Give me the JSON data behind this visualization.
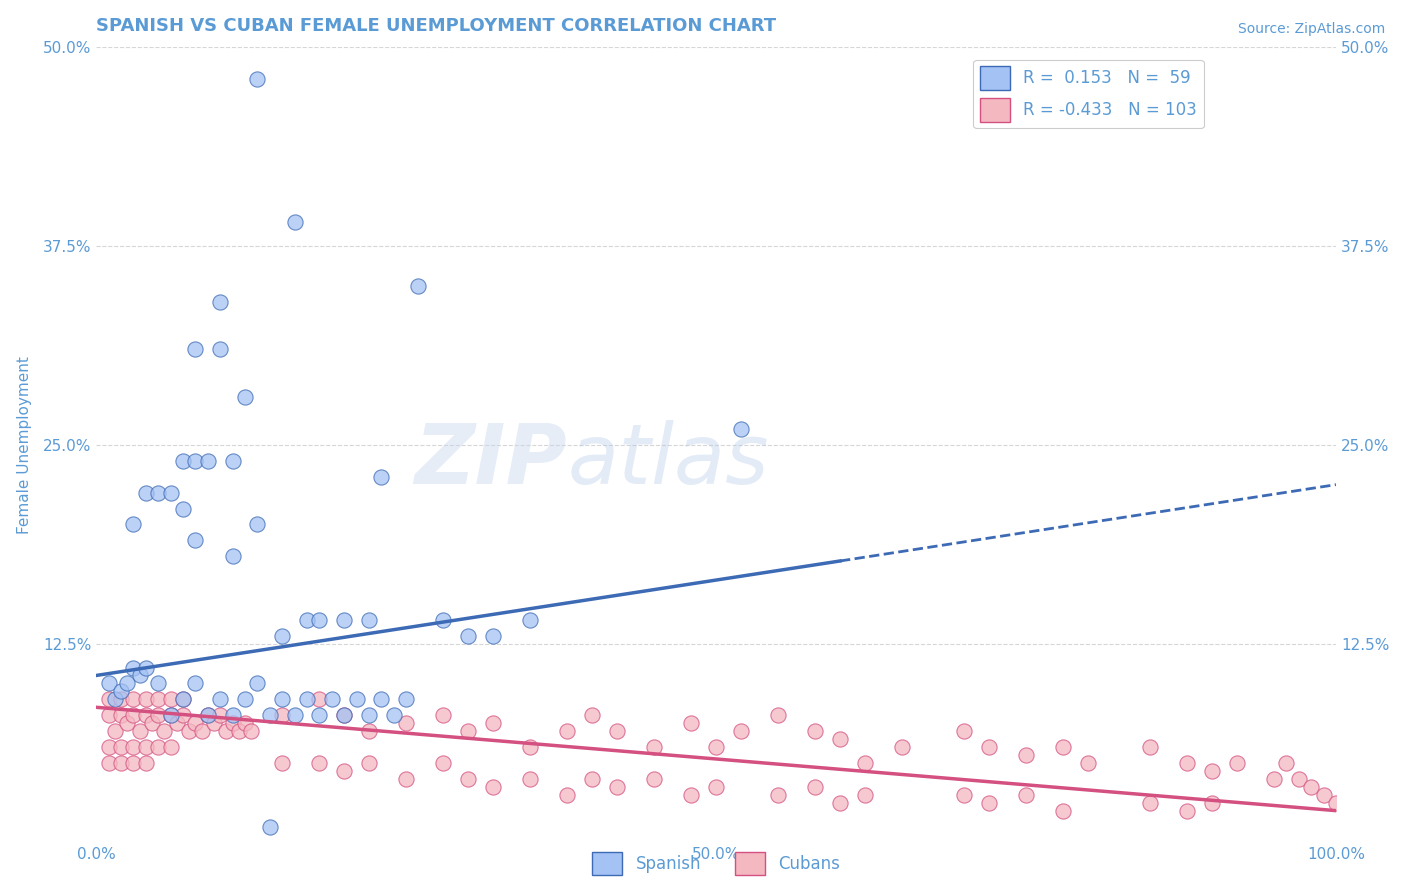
{
  "title": "SPANISH VS CUBAN FEMALE UNEMPLOYMENT CORRELATION CHART",
  "source": "Source: ZipAtlas.com",
  "xlabel": "",
  "ylabel": "Female Unemployment",
  "xlim": [
    0,
    100
  ],
  "ylim": [
    0,
    50
  ],
  "spanish_color": "#a4c2f4",
  "cuban_color": "#f4b8c1",
  "spanish_line_color": "#3d6ab5",
  "cuban_line_color": "#d45080",
  "legend_r_spanish": "R =  0.153",
  "legend_n_spanish": "N =  59",
  "legend_r_cuban": "R = -0.433",
  "legend_n_cuban": "N = 103",
  "watermark": "ZIPatlas",
  "background_color": "#ffffff",
  "grid_color": "#cccccc",
  "title_color": "#5b9bd5",
  "axis_label_color": "#5b9bd5",
  "tick_color": "#5b9bd5",
  "spanish_line_y0": 10.5,
  "spanish_line_y100": 22.5,
  "cuban_line_y0": 8.5,
  "cuban_line_y100": 2.0,
  "spanish_solid_max_x": 60,
  "spanish_points": [
    [
      13,
      48
    ],
    [
      16,
      39
    ],
    [
      10,
      34
    ],
    [
      26,
      35
    ],
    [
      8,
      31
    ],
    [
      10,
      31
    ],
    [
      12,
      28
    ],
    [
      7,
      24
    ],
    [
      8,
      24
    ],
    [
      9,
      24
    ],
    [
      11,
      24
    ],
    [
      4,
      22
    ],
    [
      5,
      22
    ],
    [
      6,
      22
    ],
    [
      7,
      21
    ],
    [
      3,
      20
    ],
    [
      13,
      20
    ],
    [
      23,
      23
    ],
    [
      8,
      19
    ],
    [
      52,
      26
    ],
    [
      17,
      14
    ],
    [
      22,
      14
    ],
    [
      18,
      14
    ],
    [
      11,
      18
    ],
    [
      1,
      10
    ],
    [
      1.5,
      9
    ],
    [
      2,
      9.5
    ],
    [
      2.5,
      10
    ],
    [
      3,
      11
    ],
    [
      3.5,
      10.5
    ],
    [
      4,
      11
    ],
    [
      5,
      10
    ],
    [
      6,
      8
    ],
    [
      7,
      9
    ],
    [
      8,
      10
    ],
    [
      9,
      8
    ],
    [
      10,
      9
    ],
    [
      11,
      8
    ],
    [
      12,
      9
    ],
    [
      13,
      10
    ],
    [
      14,
      8
    ],
    [
      15,
      9
    ],
    [
      16,
      8
    ],
    [
      17,
      9
    ],
    [
      18,
      8
    ],
    [
      19,
      9
    ],
    [
      20,
      8
    ],
    [
      21,
      9
    ],
    [
      22,
      8
    ],
    [
      23,
      9
    ],
    [
      24,
      8
    ],
    [
      25,
      9
    ],
    [
      14,
      1
    ],
    [
      30,
      13
    ],
    [
      35,
      14
    ],
    [
      15,
      13
    ],
    [
      20,
      14
    ],
    [
      28,
      14
    ],
    [
      32,
      13
    ]
  ],
  "cuban_points": [
    [
      1,
      8
    ],
    [
      1.5,
      7
    ],
    [
      2,
      8
    ],
    [
      2.5,
      7.5
    ],
    [
      3,
      8
    ],
    [
      3.5,
      7
    ],
    [
      4,
      8
    ],
    [
      4.5,
      7.5
    ],
    [
      5,
      8
    ],
    [
      5.5,
      7
    ],
    [
      6,
      8
    ],
    [
      6.5,
      7.5
    ],
    [
      7,
      8
    ],
    [
      7.5,
      7
    ],
    [
      8,
      7.5
    ],
    [
      8.5,
      7
    ],
    [
      9,
      8
    ],
    [
      9.5,
      7.5
    ],
    [
      10,
      8
    ],
    [
      10.5,
      7
    ],
    [
      11,
      7.5
    ],
    [
      11.5,
      7
    ],
    [
      12,
      7.5
    ],
    [
      12.5,
      7
    ],
    [
      1,
      6
    ],
    [
      2,
      6
    ],
    [
      3,
      6
    ],
    [
      4,
      6
    ],
    [
      5,
      6
    ],
    [
      6,
      6
    ],
    [
      1,
      9
    ],
    [
      2,
      9
    ],
    [
      3,
      9
    ],
    [
      4,
      9
    ],
    [
      5,
      9
    ],
    [
      6,
      9
    ],
    [
      7,
      9
    ],
    [
      1,
      5
    ],
    [
      2,
      5
    ],
    [
      3,
      5
    ],
    [
      4,
      5
    ],
    [
      15,
      8
    ],
    [
      18,
      9
    ],
    [
      20,
      8
    ],
    [
      22,
      7
    ],
    [
      25,
      7.5
    ],
    [
      28,
      8
    ],
    [
      30,
      7
    ],
    [
      32,
      7.5
    ],
    [
      35,
      6
    ],
    [
      38,
      7
    ],
    [
      15,
      5
    ],
    [
      18,
      5
    ],
    [
      20,
      4.5
    ],
    [
      22,
      5
    ],
    [
      25,
      4
    ],
    [
      28,
      5
    ],
    [
      30,
      4
    ],
    [
      32,
      3.5
    ],
    [
      35,
      4
    ],
    [
      38,
      3
    ],
    [
      40,
      8
    ],
    [
      42,
      7
    ],
    [
      45,
      6
    ],
    [
      48,
      7.5
    ],
    [
      50,
      6
    ],
    [
      52,
      7
    ],
    [
      40,
      4
    ],
    [
      42,
      3.5
    ],
    [
      45,
      4
    ],
    [
      48,
      3
    ],
    [
      50,
      3.5
    ],
    [
      55,
      8
    ],
    [
      58,
      7
    ],
    [
      60,
      6.5
    ],
    [
      62,
      5
    ],
    [
      65,
      6
    ],
    [
      55,
      3
    ],
    [
      58,
      3.5
    ],
    [
      60,
      2.5
    ],
    [
      62,
      3
    ],
    [
      70,
      7
    ],
    [
      72,
      6
    ],
    [
      75,
      5.5
    ],
    [
      78,
      6
    ],
    [
      80,
      5
    ],
    [
      70,
      3
    ],
    [
      72,
      2.5
    ],
    [
      75,
      3
    ],
    [
      78,
      2
    ],
    [
      85,
      6
    ],
    [
      88,
      5
    ],
    [
      90,
      4.5
    ],
    [
      92,
      5
    ],
    [
      95,
      4
    ],
    [
      85,
      2.5
    ],
    [
      88,
      2
    ],
    [
      90,
      2.5
    ],
    [
      97,
      4
    ],
    [
      98,
      3.5
    ],
    [
      99,
      3
    ],
    [
      100,
      2.5
    ],
    [
      96,
      5
    ]
  ]
}
